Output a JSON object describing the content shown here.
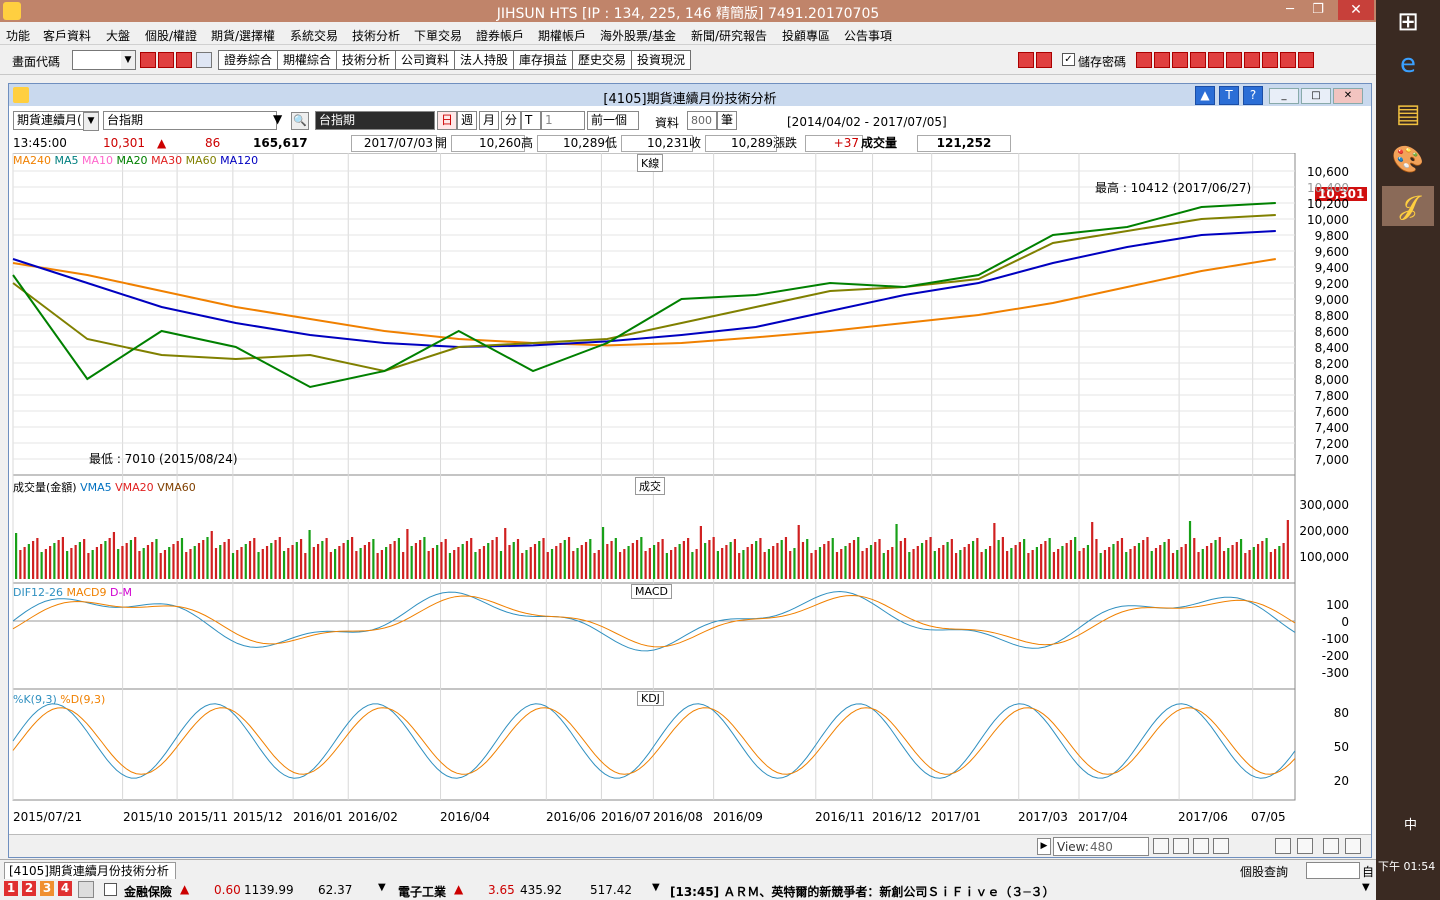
{
  "app": {
    "title": "JIHSUN HTS     [IP : 134, 225, 146 精簡版] 7491.20170705",
    "win_min": "─",
    "win_max": "❐",
    "win_close": "✕"
  },
  "menu": [
    "功能",
    "客戶資料",
    "大盤",
    "個股/權證",
    "期貨/選擇權",
    "系統交易",
    "技術分析",
    "下單交易",
    "證券帳戶",
    "期權帳戶",
    "海外股票/基金",
    "新聞/研究報告",
    "投顧專區",
    "公告事項"
  ],
  "toolbar": {
    "code_label": "畫面代碼",
    "code_value": "",
    "buttons": [
      "證券綜合",
      "期權綜合",
      "技術分析",
      "公司資料",
      "法人持股",
      "庫存損益",
      "歷史交易",
      "投資現況"
    ],
    "save_pwd_label": "儲存密碼"
  },
  "window": {
    "title": "[4105]期貨連續月份技術分析",
    "up": "▲",
    "t": "T",
    "help": "?",
    "min": "_",
    "max": "□",
    "close": "✕"
  },
  "controls": {
    "product": "期貨連續月(",
    "symbol": "台指期",
    "symbol_label": "台指期",
    "periods": [
      "日",
      "週",
      "月",
      "分",
      "T"
    ],
    "interval": "1",
    "prev": "前一個",
    "data_label": "資料",
    "data_count": "800",
    "data_unit": "筆",
    "date_range": "[2014/04/02 - 2017/07/05]"
  },
  "quote": {
    "time": "13:45:00",
    "price": "10,301",
    "change": "86",
    "volume": "165,617",
    "date": "2017/07/03",
    "open_label": "開",
    "open": "10,260",
    "high_label": "高",
    "high": "10,289",
    "low_label": "低",
    "low": "10,231",
    "close_label": "收",
    "close": "10,289",
    "chg_label": "漲跌",
    "chg": "+37",
    "vol_label": "成交量",
    "vol": "121,252"
  },
  "chart_data": {
    "type": "line",
    "panels": [
      {
        "name": "K線",
        "legend": [
          "MA240",
          "MA5",
          "MA10",
          "MA20",
          "MA30",
          "MA60",
          "MA120"
        ],
        "legend_colors": [
          "#f08000",
          "#008080",
          "#ff66cc",
          "#008000",
          "#e02020",
          "#808000",
          "#0000c0"
        ],
        "yticks": [
          "10,600",
          "10,400",
          "10,200",
          "10,000",
          "9,800",
          "9,600",
          "9,400",
          "9,200",
          "9,000",
          "8,800",
          "8,600",
          "8,400",
          "8,200",
          "8,000",
          "7,800",
          "7,600",
          "7,400",
          "7,200",
          "7,000"
        ],
        "high_note": "最高 : 10412 (2017/06/27)",
        "low_note": "最低 : 7010 (2015/08/24)",
        "last_price": "10,301"
      },
      {
        "name": "成交",
        "legend": [
          "成交量(金額)",
          "VMA5",
          "VMA20",
          "VMA60"
        ],
        "legend_colors": [
          "#000000",
          "#0070c0",
          "#e02020",
          "#804000"
        ],
        "yticks": [
          "300,000",
          "200,000",
          "100,000"
        ]
      },
      {
        "name": "MACD",
        "legend": [
          "DIF12-26",
          "MACD9",
          "D-M"
        ],
        "legend_colors": [
          "#3090c0",
          "#f08000",
          "#d000d0"
        ],
        "yticks": [
          "100",
          "0",
          "-100",
          "-200",
          "-300"
        ]
      },
      {
        "name": "KDJ",
        "legend": [
          "%K(9,3)",
          "%D(9,3)"
        ],
        "legend_colors": [
          "#3090c0",
          "#f08000"
        ],
        "yticks": [
          "80",
          "50",
          "20"
        ]
      }
    ],
    "x_labels": [
      "2015/07/21",
      "2015/10",
      "2015/11",
      "2015/12",
      "2016/01",
      "2016/02",
      "2016/04",
      "2016/06",
      "2016/07",
      "2016/08",
      "2016/09",
      "2016/11",
      "2016/12",
      "2017/01",
      "2017/03",
      "2017/04",
      "2017/06",
      "07/05"
    ],
    "ma": {
      "MA240": [
        9450,
        9300,
        9100,
        8900,
        8750,
        8600,
        8500,
        8450,
        8420,
        8450,
        8520,
        8600,
        8700,
        8800,
        8950,
        9150,
        9350,
        9500
      ],
      "MA120": [
        9500,
        9200,
        8900,
        8700,
        8550,
        8450,
        8400,
        8420,
        8470,
        8550,
        8650,
        8850,
        9050,
        9200,
        9450,
        9650,
        9800,
        9850
      ],
      "MA60": [
        9200,
        8500,
        8300,
        8250,
        8300,
        8100,
        8400,
        8450,
        8500,
        8700,
        8900,
        9100,
        9150,
        9250,
        9700,
        9850,
        10000,
        10050
      ],
      "MA20": [
        9300,
        8000,
        8600,
        8400,
        7900,
        8100,
        8600,
        8100,
        8450,
        9000,
        9050,
        9200,
        9150,
        9300,
        9800,
        9900,
        10150,
        10200
      ]
    }
  },
  "view": {
    "label": "View:",
    "value": "480"
  },
  "tab": {
    "label": "[4105]期貨連續月份技術分析",
    "stock_query": "個股查詢",
    "self": "自"
  },
  "status": {
    "nums": [
      "1",
      "2",
      "3",
      "4"
    ],
    "ins_label": "金融保險",
    "ins_chg": "0.60",
    "ins_idx": "1139.99",
    "ins_vol": "62.37",
    "elec_label": "電子工業",
    "elec_chg": "3.65",
    "elec_idx": "435.92",
    "elec_vol": "517.42",
    "news": "[13:45] ＡＲＭ、英特爾的新競爭者：新創公司ＳｉＦｉｖｅ（３─３）"
  },
  "taskbar": {
    "ime": "中",
    "clock": "下午 01:54"
  }
}
